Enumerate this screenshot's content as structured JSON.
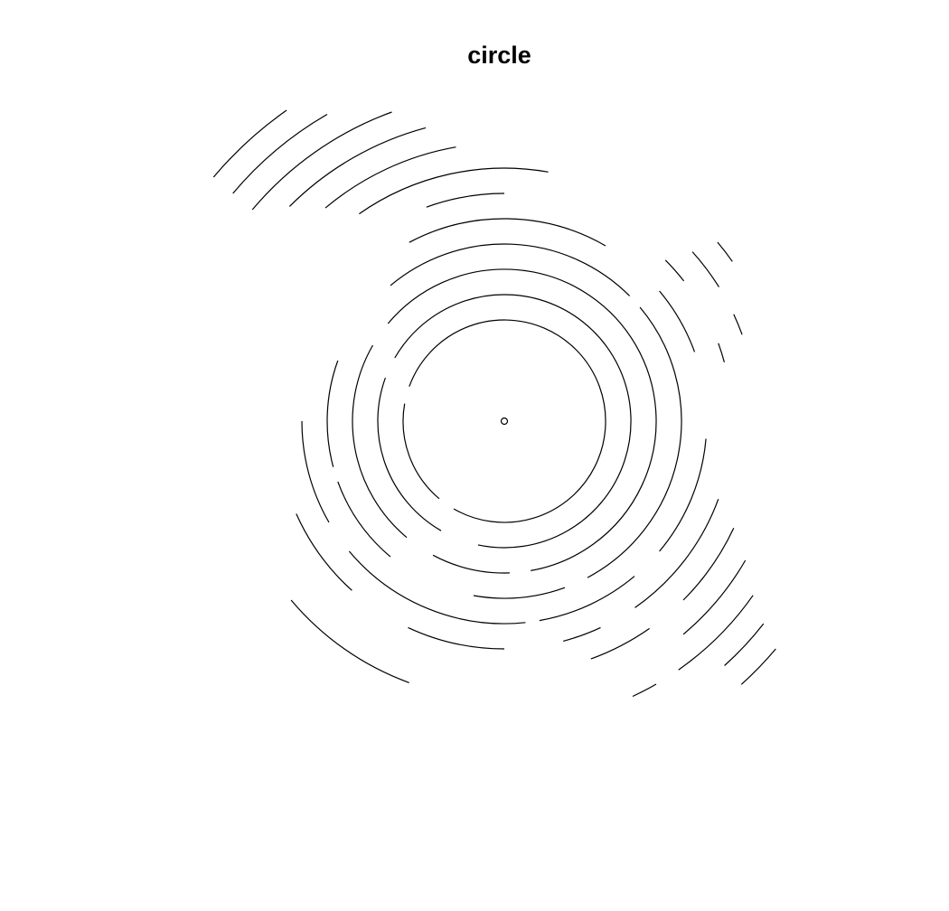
{
  "chart_data": {
    "type": "contour",
    "title": "circle",
    "center_marker": "open-circle",
    "axes_shown": false,
    "grid": false,
    "legend": "none",
    "line_color": "#000000",
    "background_color": "#ffffff"
  }
}
